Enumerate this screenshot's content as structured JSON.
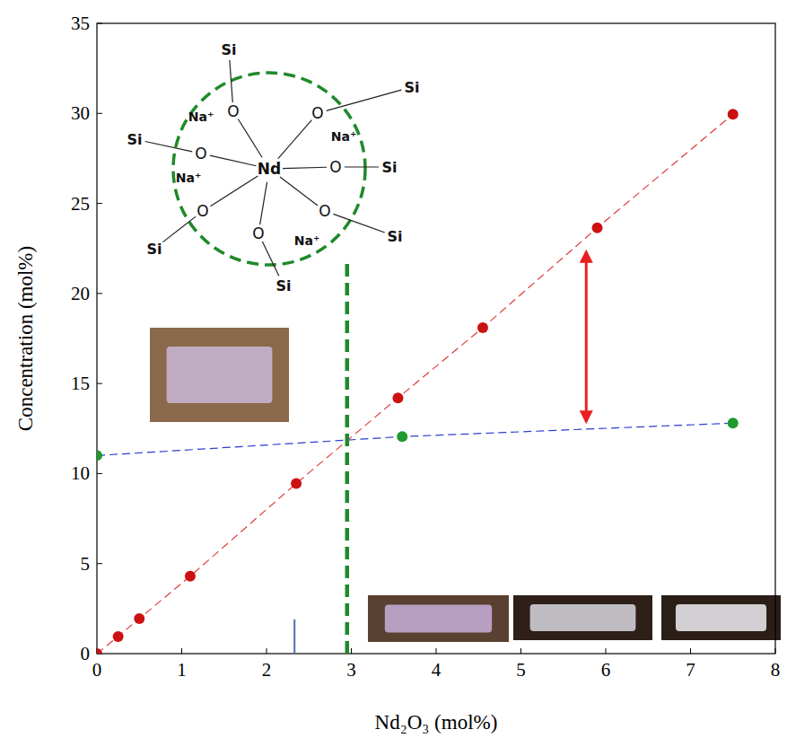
{
  "chart_data": {
    "type": "scatter",
    "x_label": "Nd₂O₃ (mol%)",
    "y_label": "Concentration (mol%)",
    "xlim": [
      0,
      8
    ],
    "xticks": [
      0,
      1,
      2,
      3,
      4,
      5,
      6,
      7,
      8
    ],
    "ylim": [
      0,
      35
    ],
    "yticks": [
      0,
      5,
      10,
      15,
      20,
      25,
      30,
      35
    ],
    "grid": false,
    "series": [
      {
        "color": "#cc1111",
        "marker": "circle",
        "line_style": "dashed",
        "line_color": "#e03a3a",
        "x": [
          0,
          0.25,
          0.5,
          1.1,
          2.35,
          3.55,
          4.55,
          5.9,
          7.5
        ],
        "values": [
          0,
          0.95,
          1.95,
          4.3,
          9.45,
          14.2,
          18.1,
          23.65,
          29.95
        ]
      },
      {
        "color": "#1f9a2f",
        "marker": "circle",
        "line_style": "dashed",
        "line_color": "#2a3fd0",
        "x": [
          0,
          3.6,
          7.5
        ],
        "values": [
          11,
          12.05,
          12.8
        ]
      }
    ],
    "threshold": {
      "x": 2.95,
      "y_end": 21.9
    },
    "gap_arrow": {
      "x": 5.77,
      "y": [
        12.9,
        22.3
      ]
    },
    "small_mark": {
      "x": 2.33,
      "y_end": 1.9
    },
    "structure": {
      "center": "Nd",
      "oxygen": [
        "O",
        "O",
        "O",
        "O",
        "O",
        "O",
        "O"
      ],
      "silicon": [
        "Si",
        "Si",
        "Si",
        "Si",
        "Si",
        "Si",
        "Si"
      ],
      "sodium": [
        "Na⁺",
        "Na⁺",
        "Na⁺",
        "Na⁺"
      ]
    }
  }
}
